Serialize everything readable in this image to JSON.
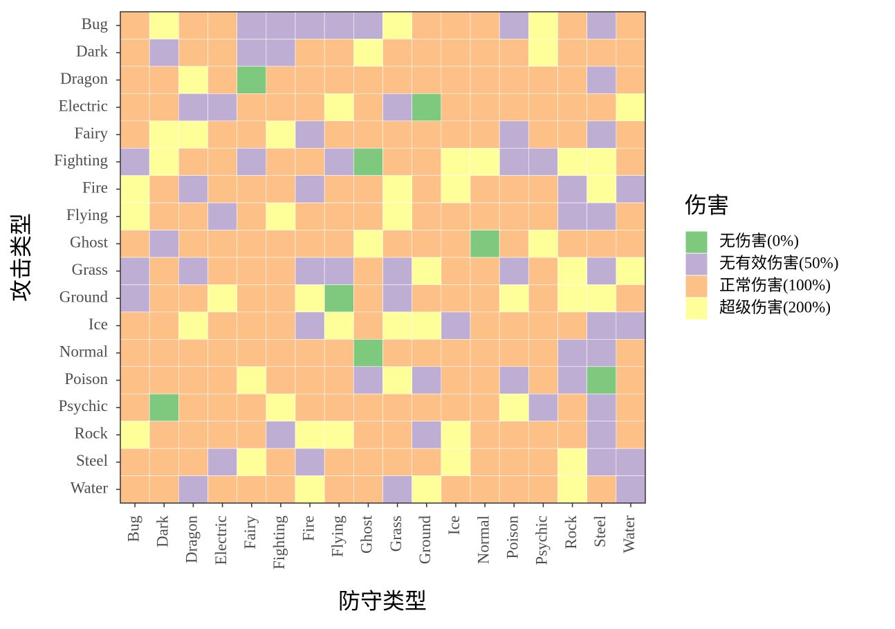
{
  "chart_data": {
    "type": "heatmap",
    "x_label": "防守类型",
    "y_label": "攻击类型",
    "x": [
      "Bug",
      "Dark",
      "Dragon",
      "Electric",
      "Fairy",
      "Fighting",
      "Fire",
      "Flying",
      "Ghost",
      "Grass",
      "Ground",
      "Ice",
      "Normal",
      "Poison",
      "Psychic",
      "Rock",
      "Steel",
      "Water"
    ],
    "y": [
      "Bug",
      "Dark",
      "Dragon",
      "Electric",
      "Fairy",
      "Fighting",
      "Fire",
      "Flying",
      "Ghost",
      "Grass",
      "Ground",
      "Ice",
      "Normal",
      "Poison",
      "Psychic",
      "Rock",
      "Steel",
      "Water"
    ],
    "values": [
      [
        100,
        200,
        100,
        100,
        50,
        50,
        50,
        50,
        50,
        200,
        100,
        100,
        100,
        50,
        200,
        100,
        50,
        100
      ],
      [
        100,
        50,
        100,
        100,
        50,
        50,
        100,
        100,
        200,
        100,
        100,
        100,
        100,
        100,
        200,
        100,
        100,
        100
      ],
      [
        100,
        100,
        200,
        100,
        0,
        100,
        100,
        100,
        100,
        100,
        100,
        100,
        100,
        100,
        100,
        100,
        50,
        100
      ],
      [
        100,
        100,
        50,
        50,
        100,
        100,
        100,
        200,
        100,
        50,
        0,
        100,
        100,
        100,
        100,
        100,
        100,
        200
      ],
      [
        100,
        200,
        200,
        100,
        100,
        200,
        50,
        100,
        100,
        100,
        100,
        100,
        100,
        50,
        100,
        100,
        50,
        100
      ],
      [
        50,
        200,
        100,
        100,
        50,
        100,
        100,
        50,
        0,
        100,
        100,
        200,
        200,
        50,
        50,
        200,
        200,
        100
      ],
      [
        200,
        100,
        50,
        100,
        100,
        100,
        50,
        100,
        100,
        200,
        100,
        200,
        100,
        100,
        100,
        50,
        200,
        50
      ],
      [
        200,
        100,
        100,
        50,
        100,
        200,
        100,
        100,
        100,
        200,
        100,
        100,
        100,
        100,
        100,
        50,
        50,
        100
      ],
      [
        100,
        50,
        100,
        100,
        100,
        100,
        100,
        100,
        200,
        100,
        100,
        100,
        0,
        100,
        200,
        100,
        100,
        100
      ],
      [
        50,
        100,
        50,
        100,
        100,
        100,
        50,
        50,
        100,
        50,
        200,
        100,
        100,
        50,
        100,
        200,
        50,
        200
      ],
      [
        50,
        100,
        100,
        200,
        100,
        100,
        200,
        0,
        100,
        50,
        100,
        100,
        100,
        200,
        100,
        200,
        200,
        100
      ],
      [
        100,
        100,
        200,
        100,
        100,
        100,
        50,
        200,
        100,
        200,
        200,
        50,
        100,
        100,
        100,
        100,
        50,
        50
      ],
      [
        100,
        100,
        100,
        100,
        100,
        100,
        100,
        100,
        0,
        100,
        100,
        100,
        100,
        100,
        100,
        50,
        50,
        100
      ],
      [
        100,
        100,
        100,
        100,
        200,
        100,
        100,
        100,
        50,
        200,
        50,
        100,
        100,
        50,
        100,
        50,
        0,
        100
      ],
      [
        100,
        0,
        100,
        100,
        100,
        200,
        100,
        100,
        100,
        100,
        100,
        100,
        100,
        200,
        50,
        100,
        50,
        100
      ],
      [
        200,
        100,
        100,
        100,
        100,
        50,
        200,
        200,
        100,
        100,
        50,
        200,
        100,
        100,
        100,
        100,
        50,
        100
      ],
      [
        100,
        100,
        100,
        50,
        200,
        100,
        50,
        100,
        100,
        100,
        100,
        200,
        100,
        100,
        100,
        200,
        50,
        50
      ],
      [
        100,
        100,
        50,
        100,
        100,
        100,
        200,
        100,
        100,
        50,
        200,
        100,
        100,
        100,
        100,
        200,
        100,
        50
      ]
    ],
    "legend": {
      "title": "伤害",
      "levels": [
        {
          "value": 0,
          "label": "无伤害(0%)",
          "color": "#7fc97f"
        },
        {
          "value": 50,
          "label": "无有效伤害(50%)",
          "color": "#beaed4"
        },
        {
          "value": 100,
          "label": "正常伤害(100%)",
          "color": "#fdc086"
        },
        {
          "value": 200,
          "label": "超级伤害(200%)",
          "color": "#ffff99"
        }
      ]
    }
  }
}
